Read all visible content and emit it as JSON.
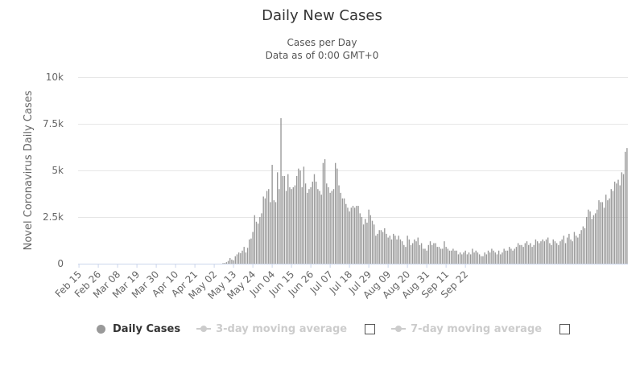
{
  "chart_data": {
    "type": "bar",
    "title": "Daily New Cases",
    "subtitle_line1": "Cases per Day",
    "subtitle_line2": "Data as of 0:00 GMT+0",
    "ylabel": "Novel Coronavirus Daily Cases",
    "ylim": [
      0,
      10000
    ],
    "y_ticks": [
      0,
      2500,
      5000,
      7500,
      10000
    ],
    "y_tick_labels": [
      "0",
      "2.5k",
      "5k",
      "7.5k",
      "10k"
    ],
    "x_tick_labels": [
      "Feb 15",
      "Feb 26",
      "Mar 08",
      "Mar 19",
      "Mar 30",
      "Apr 10",
      "Apr 21",
      "May 02",
      "May 13",
      "May 24",
      "Jun 04",
      "Jun 15",
      "Jun 26",
      "Jul 07",
      "Jul 18",
      "Jul 29",
      "Aug 09",
      "Aug 20",
      "Aug 31",
      "Sep 11",
      "Sep 22"
    ],
    "x_start": "Feb 15",
    "x_end": "Sep 23",
    "bar_color": "#999999",
    "grid": true,
    "legend_position": "bottom",
    "series": [
      {
        "name": "Daily Cases",
        "values": [
          0,
          0,
          0,
          0,
          0,
          0,
          0,
          0,
          0,
          0,
          0,
          0,
          0,
          0,
          0,
          0,
          0,
          0,
          0,
          0,
          0,
          0,
          0,
          0,
          0,
          0,
          0,
          0,
          0,
          0,
          0,
          0,
          0,
          0,
          0,
          0,
          0,
          0,
          0,
          0,
          0,
          0,
          0,
          0,
          0,
          0,
          0,
          0,
          0,
          0,
          0,
          0,
          0,
          0,
          0,
          0,
          0,
          0,
          0,
          0,
          0,
          0,
          0,
          0,
          0,
          0,
          0,
          0,
          0,
          0,
          0,
          0,
          0,
          0,
          0,
          0,
          0,
          0,
          0,
          0,
          0,
          0,
          30,
          40,
          80,
          150,
          300,
          220,
          180,
          400,
          500,
          600,
          560,
          700,
          900,
          600,
          850,
          1300,
          1350,
          1700,
          2600,
          2250,
          2150,
          2500,
          2700,
          3600,
          3500,
          3900,
          4000,
          3300,
          5300,
          3400,
          3300,
          4900,
          4000,
          7800,
          4700,
          4700,
          3900,
          4800,
          4100,
          4000,
          4100,
          4200,
          4700,
          5100,
          5000,
          4100,
          5200,
          4300,
          3800,
          4000,
          4100,
          4400,
          4800,
          4400,
          4000,
          3900,
          3700,
          5400,
          5600,
          4300,
          4100,
          3800,
          3900,
          4000,
          5400,
          5100,
          4200,
          3800,
          3500,
          3500,
          3200,
          3000,
          2800,
          3000,
          3100,
          3000,
          3100,
          3100,
          2700,
          2500,
          2100,
          2400,
          2200,
          2900,
          2600,
          2300,
          2100,
          1500,
          1600,
          1800,
          1800,
          1700,
          1900,
          1600,
          1400,
          1500,
          1300,
          1600,
          1500,
          1300,
          1500,
          1300,
          1200,
          1000,
          900,
          1500,
          1300,
          1000,
          1100,
          1300,
          1200,
          1400,
          1000,
          1100,
          800,
          800,
          700,
          1000,
          1200,
          1000,
          1100,
          1100,
          900,
          900,
          800,
          800,
          1200,
          900,
          800,
          700,
          700,
          800,
          700,
          700,
          500,
          600,
          500,
          600,
          700,
          500,
          600,
          500,
          800,
          600,
          700,
          600,
          500,
          400,
          400,
          600,
          500,
          700,
          600,
          800,
          700,
          600,
          500,
          700,
          500,
          600,
          800,
          700,
          700,
          900,
          800,
          700,
          800,
          900,
          1100,
          1000,
          1000,
          900,
          1100,
          1200,
          1000,
          1100,
          900,
          1000,
          1300,
          1200,
          1100,
          1200,
          1300,
          1200,
          1300,
          1400,
          1100,
          1000,
          1300,
          1200,
          1100,
          1000,
          1200,
          1300,
          1500,
          1100,
          1400,
          1600,
          1300,
          1200,
          1700,
          1500,
          1400,
          1600,
          1800,
          2000,
          1900,
          2500,
          2900,
          2800,
          2400,
          2600,
          2700,
          2900,
          3400,
          3300,
          3300,
          3000,
          3700,
          3400,
          3500,
          4000,
          3900,
          4400,
          4300,
          4500,
          4200,
          4900,
          4800,
          6000,
          6200
        ]
      }
    ]
  },
  "legend": {
    "daily_cases": "Daily Cases",
    "avg3": "3-day moving average",
    "avg7": "7-day moving average"
  },
  "legend_colors": {
    "active": "#999999",
    "inactive": "#cccccc"
  }
}
